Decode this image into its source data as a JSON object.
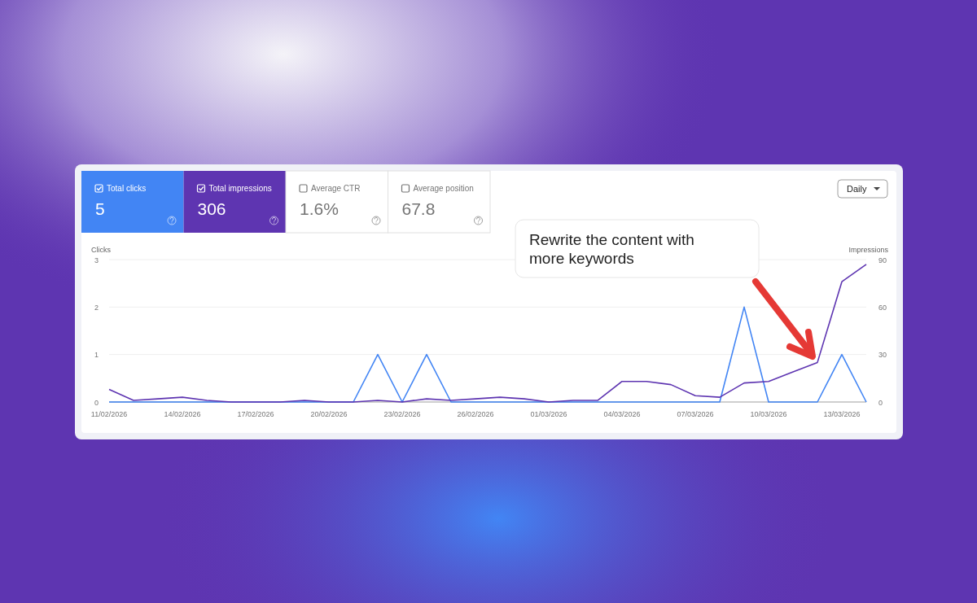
{
  "chart_data": [
    {
      "type": "other",
      "categories": [
        "Total clicks",
        "Total impressions",
        "Average CTR",
        "Average position"
      ],
      "value_labels": [
        "5",
        "306",
        "1.6%",
        "67.8"
      ],
      "colors": [
        "#4285f4",
        "#5e35b1",
        "#ffffff",
        "#ffffff"
      ],
      "annotations": [
        "Daily"
      ]
    },
    {
      "type": "line",
      "x": [
        "2026-02-11",
        "2026-02-12",
        "2026-02-13",
        "2026-02-14",
        "2026-02-15",
        "2026-02-16",
        "2026-02-17",
        "2026-02-18",
        "2026-02-19",
        "2026-02-20",
        "2026-02-21",
        "2026-02-22",
        "2026-02-23",
        "2026-02-24",
        "2026-02-25",
        "2026-02-26",
        "2026-02-27",
        "2026-02-28",
        "2026-03-01",
        "2026-03-02",
        "2026-03-03",
        "2026-03-04",
        "2026-03-05",
        "2026-03-06",
        "2026-03-07",
        "2026-03-08",
        "2026-03-09",
        "2026-03-10",
        "2026-03-11",
        "2026-03-12",
        "2026-03-13",
        "2026-03-14"
      ],
      "series": [
        {
          "color": "#4285f4",
          "values": [
            0,
            0,
            0,
            0,
            0,
            0,
            0,
            0,
            0,
            0,
            0,
            1,
            0,
            1,
            0,
            0,
            0,
            0,
            0,
            0,
            0,
            0,
            0,
            0,
            0,
            0,
            2,
            0,
            0,
            0,
            1,
            0
          ]
        },
        {
          "color": "#5e35b1",
          "axis": "y2",
          "values": [
            8,
            1,
            2,
            3,
            1,
            0,
            0,
            0,
            1,
            0,
            0,
            1,
            0,
            2,
            1,
            2,
            3,
            2,
            0,
            1,
            1,
            13,
            13,
            11,
            4,
            3,
            12,
            13,
            19,
            25,
            76,
            87
          ]
        }
      ],
      "ylabel": "Clicks",
      "y2label": "Impressions",
      "xlim": [
        "2026-02-11",
        "2026-03-14"
      ],
      "xticks": [
        {
          "value": "2026-02-11",
          "label": "11/02/2026"
        },
        {
          "value": "2026-02-14",
          "label": "14/02/2026"
        },
        {
          "value": "2026-02-17",
          "label": "17/02/2026"
        },
        {
          "value": "2026-02-20",
          "label": "20/02/2026"
        },
        {
          "value": "2026-02-23",
          "label": "23/02/2026"
        },
        {
          "value": "2026-02-26",
          "label": "26/02/2026"
        },
        {
          "value": "2026-03-01",
          "label": "01/03/2026"
        },
        {
          "value": "2026-03-04",
          "label": "04/03/2026"
        },
        {
          "value": "2026-03-07",
          "label": "07/03/2026"
        },
        {
          "value": "2026-03-10",
          "label": "10/03/2026"
        },
        {
          "value": "2026-03-13",
          "label": "13/03/2026"
        }
      ],
      "ylim": [
        0,
        3
      ],
      "yticks": [
        0,
        1,
        2,
        3
      ],
      "y2lim": [
        0,
        90
      ],
      "y2ticks": [
        0,
        30,
        60,
        90
      ],
      "grid": "y",
      "marker": "none",
      "line_style": "solid",
      "annotations": [
        "Rewrite the content with more keywords"
      ]
    }
  ]
}
